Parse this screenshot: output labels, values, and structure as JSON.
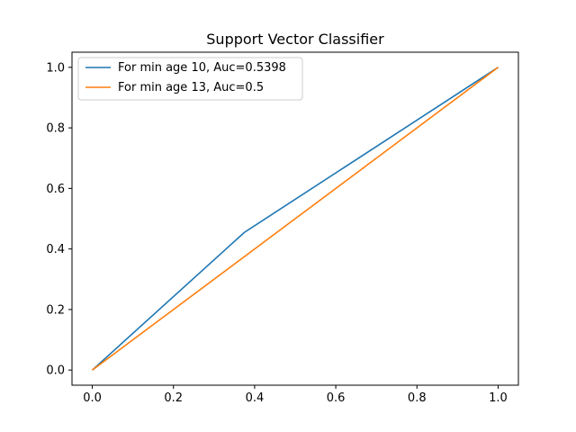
{
  "chart_data": {
    "type": "line",
    "title": "Support Vector Classifier",
    "xlabel": "",
    "ylabel": "",
    "xlim": [
      -0.05,
      1.05
    ],
    "ylim": [
      -0.05,
      1.05
    ],
    "xticks": [
      "0.0",
      "0.2",
      "0.4",
      "0.6",
      "0.8",
      "1.0"
    ],
    "yticks": [
      "0.0",
      "0.2",
      "0.4",
      "0.6",
      "0.8",
      "1.0"
    ],
    "grid": false,
    "legend": "top-left",
    "series": [
      {
        "name": "For min age 10, Auc=0.5398",
        "color": "#1f77b4",
        "x": [
          0.0,
          0.375,
          1.0
        ],
        "y": [
          0.0,
          0.455,
          1.0
        ]
      },
      {
        "name": "For min age 13, Auc=0.5",
        "color": "#ff7f0e",
        "x": [
          0.0,
          1.0
        ],
        "y": [
          0.0,
          1.0
        ]
      }
    ]
  }
}
